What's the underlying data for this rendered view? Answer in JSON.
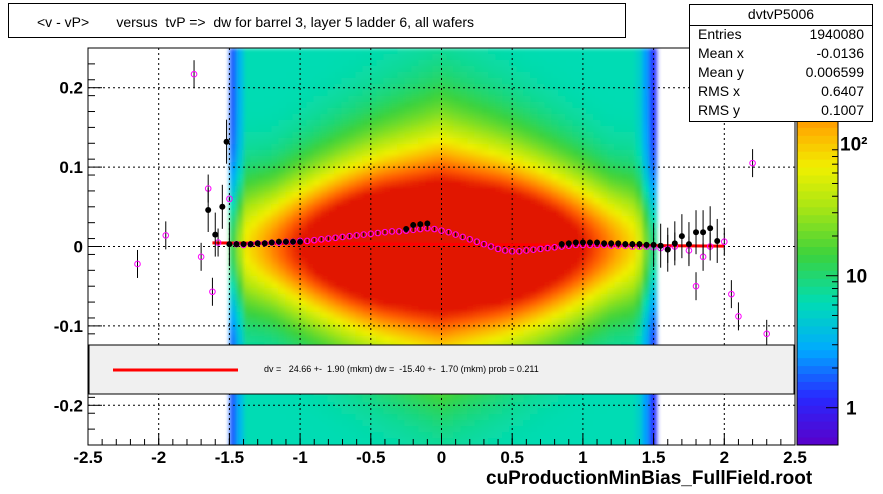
{
  "title": "<v - vP>       versus  tvP =>  dw for barrel 3, layer 5 ladder 6, all wafers",
  "footer": "cuProductionMinBias_FullField.root",
  "stats": {
    "name": "dvtvP5006",
    "rows": [
      {
        "label": "Entries",
        "value": "1940080"
      },
      {
        "label": "Mean x",
        "value": "-0.0136"
      },
      {
        "label": "Mean y",
        "value": "0.006599"
      },
      {
        "label": "RMS x",
        "value": "0.6407"
      },
      {
        "label": "RMS y",
        "value": "0.1007"
      }
    ]
  },
  "fit_text": "dv =   24.66 +-  1.90 (mkm) dw =  -15.40 +-  1.70 (mkm) prob = 0.211",
  "colors": {
    "fit_line": "#ff0000",
    "black_profile": "#000000",
    "magenta_profile": "#ff00ff",
    "legend_band": "#f0f0f0"
  },
  "chart_data": {
    "type": "heatmap",
    "title": "<v - vP>       versus  tvP =>  dw for barrel 3, layer 5 ladder 6, all wafers",
    "xlim": [
      -2.5,
      2.5
    ],
    "ylim": [
      -0.25,
      0.25
    ],
    "x_ticks": [
      "-2.5",
      "-2",
      "-1.5",
      "-1",
      "-0.5",
      "0",
      "0.5",
      "1",
      "1.5",
      "2",
      "2.5"
    ],
    "y_ticks": [
      "-0.2",
      "-0.1",
      "0",
      "0.1",
      "0.2"
    ],
    "z_scale": "log",
    "z_ticks": [
      "1",
      "10"
    ],
    "z_tick_partial": "10²",
    "grid": true,
    "heatmap_x_range": [
      -1.5,
      1.5
    ],
    "fit_line": {
      "x": [
        -1.62,
        2.0
      ],
      "y": [
        0.0045,
        0.0005
      ]
    },
    "profile_black": {
      "x": [
        -1.65,
        -1.6,
        -1.55,
        -1.52,
        -1.5,
        -1.45,
        -1.4,
        -1.35,
        -1.3,
        -1.25,
        -1.2,
        -1.15,
        -1.1,
        -1.05,
        -1.0,
        -0.25,
        -0.2,
        -0.15,
        -0.1,
        0.85,
        0.9,
        0.95,
        1.0,
        1.05,
        1.1,
        1.15,
        1.2,
        1.25,
        1.3,
        1.35,
        1.4,
        1.45,
        1.5,
        1.55,
        1.6,
        1.65,
        1.7,
        1.75,
        1.8,
        1.85,
        1.9,
        1.95
      ],
      "y": [
        0.046,
        0.015,
        0.05,
        0.132,
        0.003,
        0.003,
        0.003,
        0.003,
        0.004,
        0.004,
        0.005,
        0.006,
        0.006,
        0.006,
        0.006,
        0.022,
        0.027,
        0.028,
        0.029,
        0.003,
        0.004,
        0.005,
        0.005,
        0.005,
        0.005,
        0.004,
        0.004,
        0.004,
        0.003,
        0.003,
        0.003,
        0.002,
        0.002,
        0.001,
        -0.004,
        0.004,
        0.013,
        0.003,
        0.018,
        0.018,
        0.023,
        0.007
      ]
    },
    "profile_magenta": {
      "x": [
        -2.15,
        -1.95,
        -1.75,
        -1.7,
        -1.65,
        -1.62,
        -1.58,
        -1.5,
        -1.45,
        -1.4,
        -1.35,
        -1.3,
        -1.25,
        -1.2,
        -1.15,
        -1.1,
        -1.05,
        -1.0,
        -0.95,
        -0.9,
        -0.85,
        -0.8,
        -0.75,
        -0.7,
        -0.65,
        -0.6,
        -0.55,
        -0.5,
        -0.45,
        -0.4,
        -0.35,
        -0.3,
        -0.25,
        -0.2,
        -0.15,
        -0.1,
        -0.05,
        0.0,
        0.05,
        0.1,
        0.15,
        0.2,
        0.25,
        0.3,
        0.35,
        0.4,
        0.45,
        0.5,
        0.55,
        0.6,
        0.65,
        0.7,
        0.75,
        0.8,
        0.85,
        0.9,
        0.95,
        1.0,
        1.05,
        1.1,
        1.15,
        1.2,
        1.25,
        1.3,
        1.35,
        1.4,
        1.45,
        1.5,
        1.55,
        1.6,
        1.65,
        1.75,
        1.8,
        1.85,
        1.9,
        2.0,
        2.05,
        2.1,
        2.2,
        2.3
      ],
      "y": [
        -0.022,
        0.014,
        0.217,
        -0.013,
        0.073,
        -0.057,
        0.005,
        0.06,
        0.003,
        0.002,
        0.003,
        0.004,
        0.004,
        0.005,
        0.005,
        0.006,
        0.006,
        0.007,
        0.007,
        0.008,
        0.009,
        0.01,
        0.011,
        0.012,
        0.013,
        0.014,
        0.015,
        0.016,
        0.017,
        0.018,
        0.019,
        0.019,
        0.02,
        0.021,
        0.022,
        0.023,
        0.022,
        0.02,
        0.018,
        0.015,
        0.012,
        0.009,
        0.006,
        0.003,
        0.0,
        -0.003,
        -0.005,
        -0.006,
        -0.006,
        -0.005,
        -0.004,
        -0.003,
        -0.002,
        -0.001,
        0.0,
        0.001,
        0.002,
        0.002,
        0.002,
        0.002,
        0.002,
        0.001,
        0.001,
        0.001,
        0.0,
        0.0,
        0.0,
        -0.001,
        -0.002,
        -0.003,
        0.0,
        -0.005,
        -0.05,
        -0.013,
        0.0,
        0.006,
        -0.06,
        -0.088,
        0.105,
        -0.11
      ]
    }
  }
}
